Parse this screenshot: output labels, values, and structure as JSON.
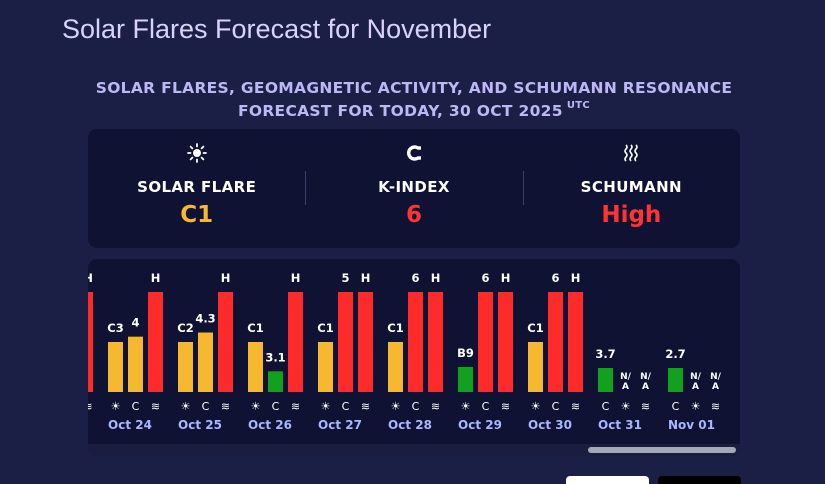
{
  "page": {
    "title": "Solar Flares Forecast for November",
    "subtitle_line1": "SOLAR FLARES, GEOMAGNETIC ACTIVITY, AND SCHUMANN RESONANCE",
    "subtitle_line2": "FORECAST FOR TODAY, 30 OCT 2025",
    "subtitle_sup": "UTC"
  },
  "summary": {
    "solar_flare": {
      "icon": "sun-icon",
      "label": "SOLAR FLARE",
      "value": "C1",
      "color": "#f5b82e"
    },
    "k_index": {
      "icon": "magnet-icon",
      "label": "K-INDEX",
      "value": "6",
      "color": "#ff3333"
    },
    "schumann": {
      "icon": "waves-icon",
      "label": "SCHUMANN",
      "value": "High",
      "color": "#ff3333"
    }
  },
  "colors": {
    "flare": "#f5b82e",
    "kp_low": "#12a11e",
    "kp_high": "#ff2b2b",
    "schumann": "#ff2b2b",
    "date_text": "#aab6ff"
  },
  "chart_data": {
    "type": "bar",
    "categories": [
      "Oct 24",
      "Oct 25",
      "Oct 26",
      "Oct 27",
      "Oct 28",
      "Oct 29",
      "Oct 30",
      "Oct 31",
      "Nov 01"
    ],
    "partial_left_labels": [
      "H"
    ],
    "series": [
      {
        "name": "Solar Flare",
        "values": [
          "C3",
          "C2",
          "C1",
          "C1",
          "C1",
          "B9",
          "C1",
          null,
          null
        ],
        "level": [
          0.5,
          0.5,
          0.5,
          0.5,
          0.5,
          0.25,
          0.5,
          null,
          null
        ]
      },
      {
        "name": "K-Index",
        "values": [
          4,
          4.3,
          3.1,
          5,
          6,
          6,
          6,
          3.7,
          2.7
        ]
      },
      {
        "name": "Schumann",
        "values": [
          "H",
          "H",
          "H",
          "H",
          "H",
          "H",
          "H",
          "N/A",
          "N/A"
        ],
        "level": [
          1,
          1,
          1,
          1,
          1,
          1,
          1,
          null,
          null
        ]
      }
    ],
    "display_labels": {
      "flare": [
        "C3",
        "C2",
        "C1",
        "C1",
        "C1",
        "B9",
        "C1",
        "",
        ""
      ],
      "kp": [
        "4",
        "4.3",
        "3.1",
        "5",
        "6",
        "6",
        "6",
        "3.7",
        "2.7"
      ],
      "schumann": [
        "H",
        "H",
        "H",
        "H",
        "H",
        "H",
        "H",
        "N/A",
        "N/A"
      ]
    },
    "na_kp_flare_label": "N/A",
    "glyphs": {
      "sun": "☀",
      "magnet": "C",
      "waves": "≋"
    }
  }
}
